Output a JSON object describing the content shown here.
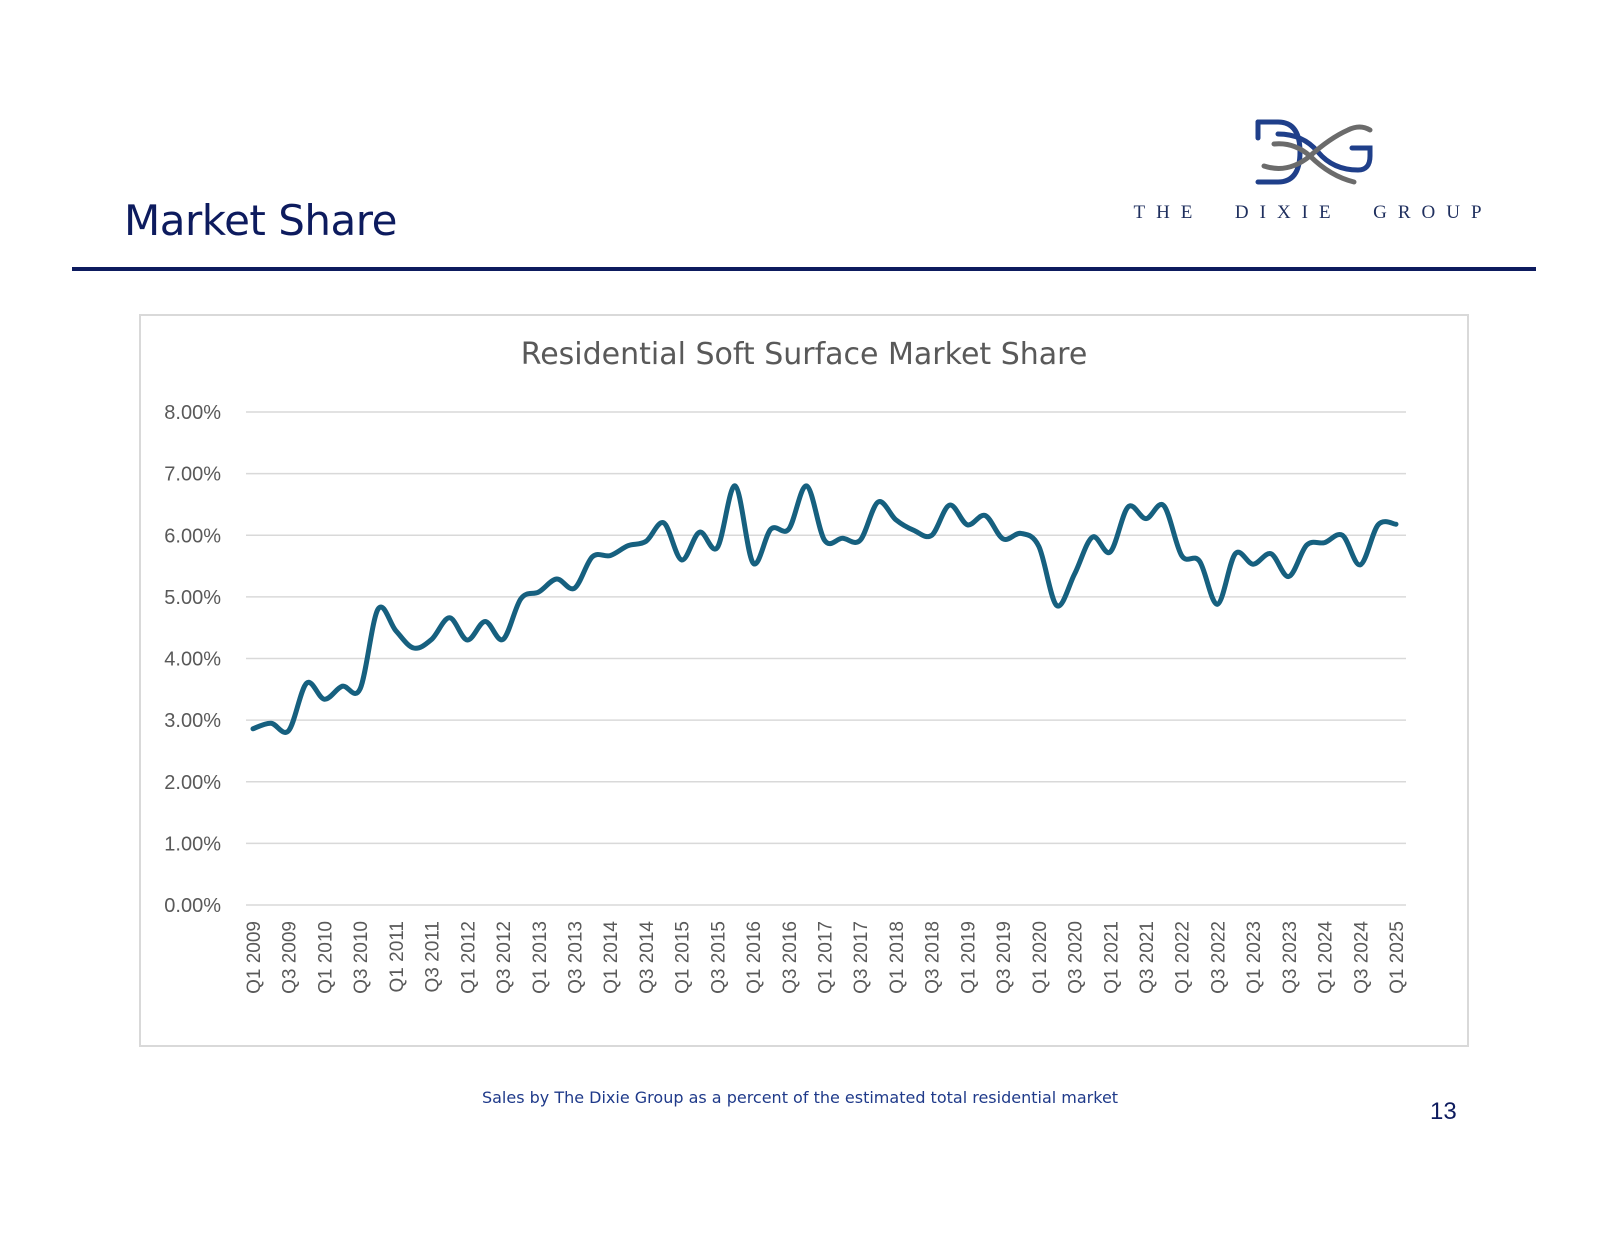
{
  "slide": {
    "title": "Market Share",
    "logo_text": "THE  DIXIE  GROUP",
    "caption": "Sales by The Dixie Group as a percent of the estimated total residential market",
    "page_number": "13"
  },
  "colors": {
    "title": "#0d1b5e",
    "rule": "#0d1b5e",
    "line": "#16607f",
    "logo_navy": "#1f3f8a",
    "logo_gray": "#6b6b6b"
  },
  "chart_data": {
    "type": "line",
    "title": "Residential Soft Surface Market Share",
    "xlabel": "",
    "ylabel": "",
    "ylim": [
      0,
      0.08
    ],
    "y_ticks": [
      "0.00%",
      "1.00%",
      "2.00%",
      "3.00%",
      "4.00%",
      "5.00%",
      "6.00%",
      "7.00%",
      "8.00%"
    ],
    "grid": true,
    "legend": "none",
    "x_tick_labels": [
      "Q1 2009",
      "Q3 2009",
      "Q1 2010",
      "Q3 2010",
      "Q1 2011",
      "Q3 2011",
      "Q1 2012",
      "Q3 2012",
      "Q1 2013",
      "Q3 2013",
      "Q1 2014",
      "Q3 2014",
      "Q1 2015",
      "Q3 2015",
      "Q1 2016",
      "Q3 2016",
      "Q1 2017",
      "Q3 2017",
      "Q1 2018",
      "Q3 2018",
      "Q1 2019",
      "Q3 2019",
      "Q1 2020",
      "Q3 2020",
      "Q1 2021",
      "Q3 2021",
      "Q1 2022",
      "Q3 2022",
      "Q1 2023",
      "Q3 2023",
      "Q1 2024",
      "Q3 2024",
      "Q1 2025"
    ],
    "categories": [
      "Q1 2009",
      "Q2 2009",
      "Q3 2009",
      "Q4 2009",
      "Q1 2010",
      "Q2 2010",
      "Q3 2010",
      "Q4 2010",
      "Q1 2011",
      "Q2 2011",
      "Q3 2011",
      "Q4 2011",
      "Q1 2012",
      "Q2 2012",
      "Q3 2012",
      "Q4 2012",
      "Q1 2013",
      "Q2 2013",
      "Q3 2013",
      "Q4 2013",
      "Q1 2014",
      "Q2 2014",
      "Q3 2014",
      "Q4 2014",
      "Q1 2015",
      "Q2 2015",
      "Q3 2015",
      "Q4 2015",
      "Q1 2016",
      "Q2 2016",
      "Q3 2016",
      "Q4 2016",
      "Q1 2017",
      "Q2 2017",
      "Q3 2017",
      "Q4 2017",
      "Q1 2018",
      "Q2 2018",
      "Q3 2018",
      "Q4 2018",
      "Q1 2019",
      "Q2 2019",
      "Q3 2019",
      "Q4 2019",
      "Q1 2020",
      "Q2 2020",
      "Q3 2020",
      "Q4 2020",
      "Q1 2021",
      "Q2 2021",
      "Q3 2021",
      "Q4 2021",
      "Q1 2022",
      "Q2 2022",
      "Q3 2022",
      "Q4 2022",
      "Q1 2023",
      "Q2 2023",
      "Q3 2023",
      "Q4 2023",
      "Q1 2024",
      "Q2 2024",
      "Q3 2024",
      "Q4 2024",
      "Q1 2025"
    ],
    "series": [
      {
        "values": [
          0.0286,
          0.0295,
          0.0283,
          0.036,
          0.0334,
          0.0355,
          0.0351,
          0.048,
          0.0445,
          0.0417,
          0.0431,
          0.0466,
          0.043,
          0.046,
          0.0431,
          0.0497,
          0.0508,
          0.0529,
          0.0514,
          0.0565,
          0.0567,
          0.0583,
          0.059,
          0.062,
          0.056,
          0.0605,
          0.058,
          0.068,
          0.0555,
          0.061,
          0.061,
          0.068,
          0.0592,
          0.0595,
          0.0592,
          0.0654,
          0.0625,
          0.0608,
          0.06,
          0.0649,
          0.0617,
          0.0632,
          0.0594,
          0.0603,
          0.0582,
          0.0486,
          0.0537,
          0.0597,
          0.0573,
          0.0646,
          0.0627,
          0.0648,
          0.0567,
          0.0558,
          0.0488,
          0.057,
          0.0553,
          0.057,
          0.0533,
          0.0584,
          0.0588,
          0.06,
          0.0552,
          0.0617,
          0.0618
        ]
      }
    ]
  }
}
